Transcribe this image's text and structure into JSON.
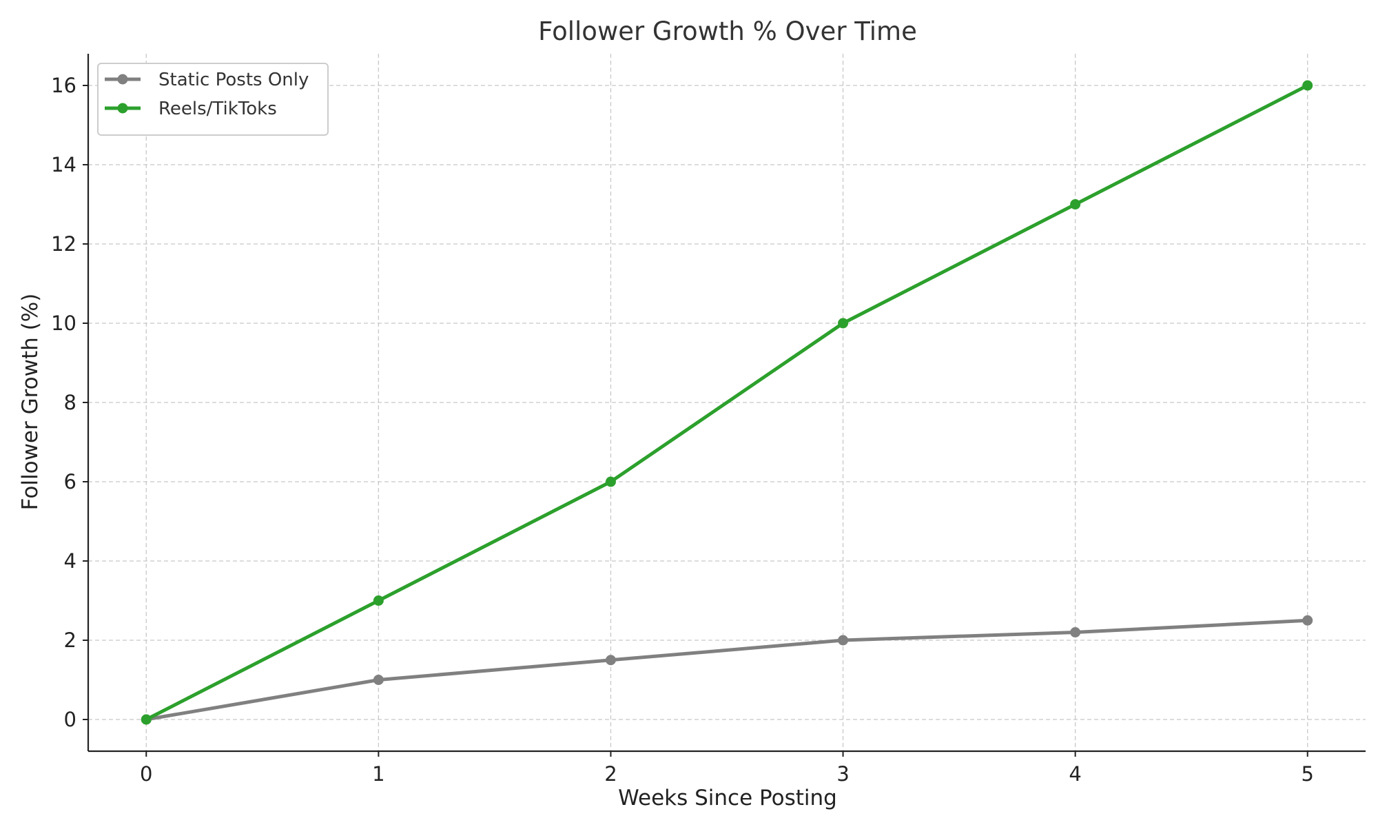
{
  "chart_data": {
    "type": "line",
    "title": "Follower Growth % Over Time",
    "xlabel": "Weeks Since Posting",
    "ylabel": "Follower Growth (%)",
    "x": [
      0,
      1,
      2,
      3,
      4,
      5
    ],
    "x_ticks": [
      0,
      1,
      2,
      3,
      4,
      5
    ],
    "y_ticks": [
      0,
      2,
      4,
      6,
      8,
      10,
      12,
      14,
      16
    ],
    "xlim": [
      -0.25,
      5.25
    ],
    "ylim": [
      -0.8,
      16.8
    ],
    "grid": true,
    "legend_position": "top-left",
    "series": [
      {
        "name": "Static Posts Only",
        "color": "#808080",
        "marker": "circle",
        "values": [
          0,
          1,
          1.5,
          2,
          2.2,
          2.5
        ]
      },
      {
        "name": "Reels/TikToks",
        "color": "#2ca02c",
        "marker": "circle",
        "values": [
          0,
          3,
          6,
          10,
          13,
          16
        ]
      }
    ]
  }
}
